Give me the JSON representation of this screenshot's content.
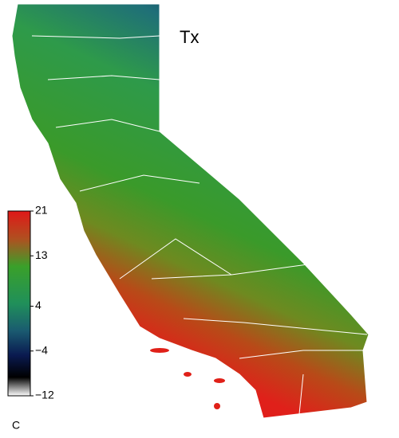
{
  "chart_data": {
    "type": "map",
    "title": "Tx",
    "colorbar": {
      "unit": "C",
      "lim": [
        -12,
        21
      ],
      "ticks": [
        21,
        13,
        4,
        {
          "value": -4,
          "label": "−4"
        },
        {
          "value": -12,
          "label": "−12"
        }
      ]
    }
  }
}
